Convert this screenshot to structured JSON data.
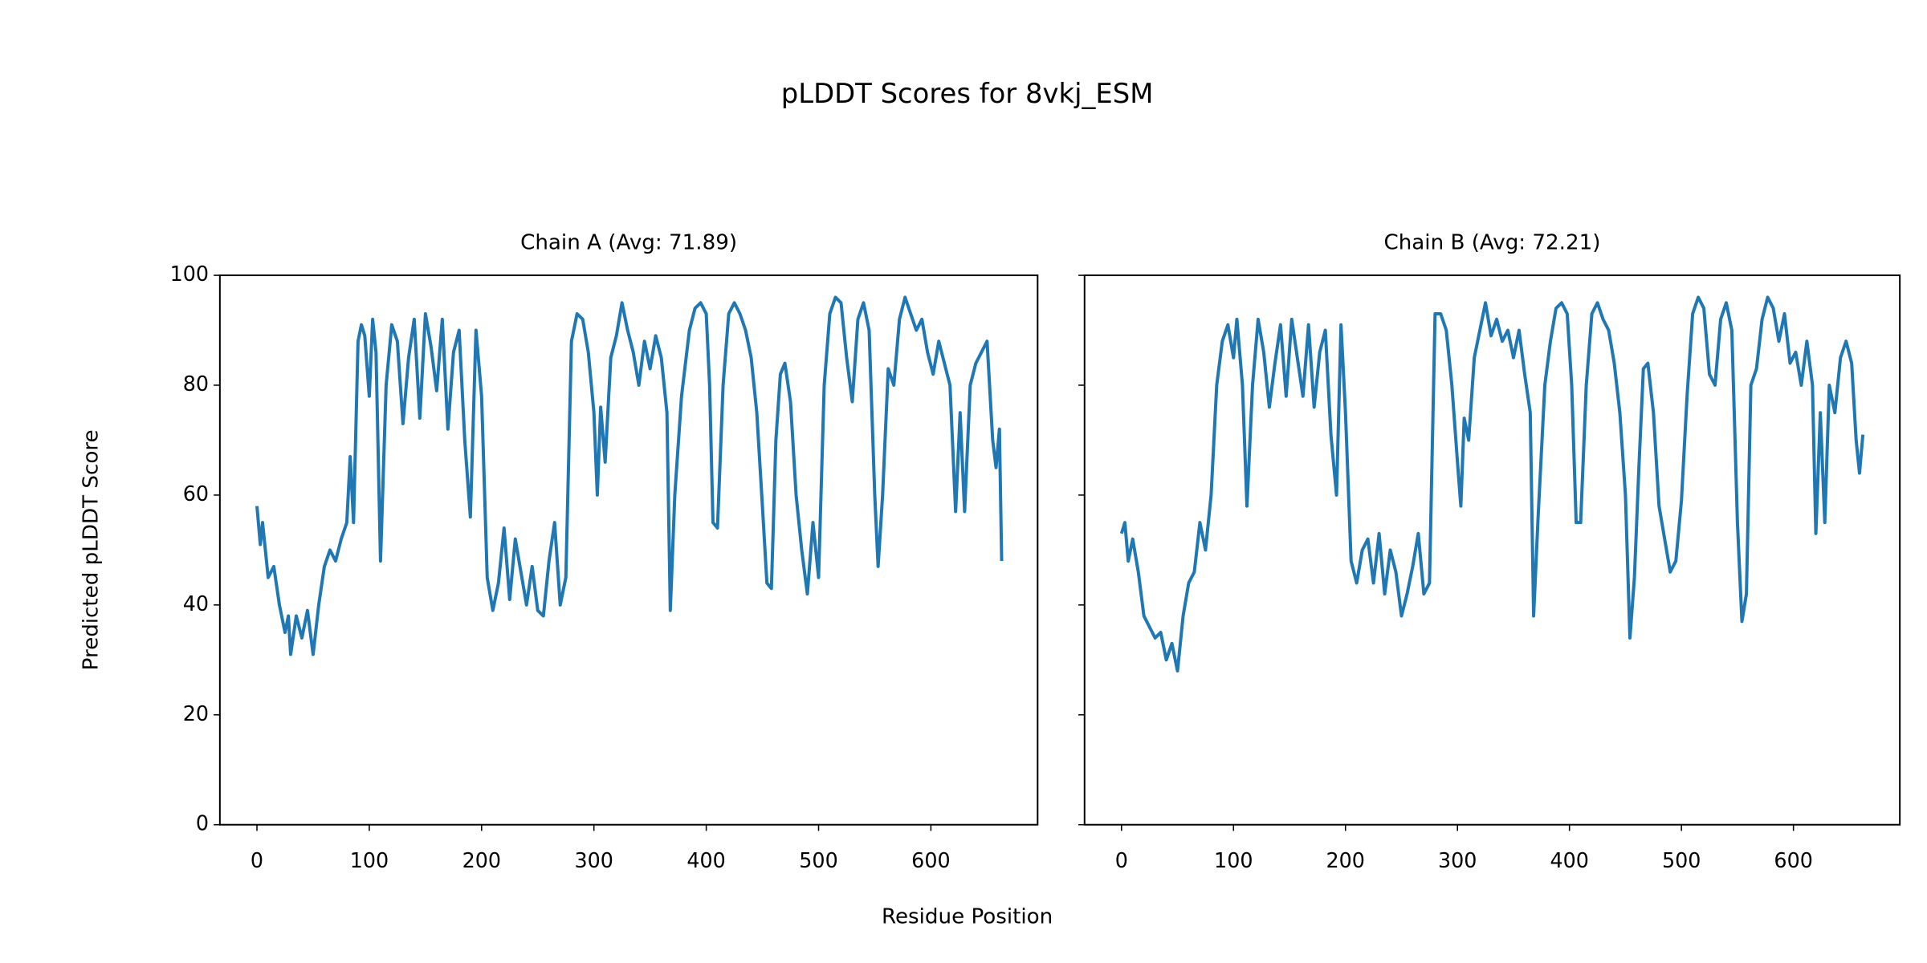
{
  "figure": {
    "title": "pLDDT Scores for 8vkj_ESM",
    "xlabel": "Residue Position"
  },
  "chart_data": [
    {
      "type": "line",
      "title": "Chain A (Avg: 71.89)",
      "ylabel": "Predicted pLDDT Score",
      "color": "#1f77b4",
      "xlim": [
        -33,
        695
      ],
      "ylim": [
        0,
        100
      ],
      "xticks": [
        0,
        100,
        200,
        300,
        400,
        500,
        600
      ],
      "yticks": [
        0,
        20,
        40,
        60,
        80,
        100
      ],
      "ytick_labels": true,
      "x": [
        0,
        3,
        5,
        10,
        15,
        20,
        25,
        28,
        30,
        35,
        40,
        45,
        50,
        55,
        60,
        65,
        70,
        75,
        80,
        83,
        86,
        90,
        93,
        96,
        100,
        103,
        106,
        110,
        115,
        120,
        125,
        130,
        135,
        140,
        145,
        150,
        155,
        160,
        165,
        170,
        175,
        180,
        185,
        190,
        195,
        200,
        205,
        210,
        215,
        220,
        225,
        230,
        235,
        240,
        245,
        250,
        255,
        260,
        265,
        270,
        275,
        280,
        285,
        290,
        295,
        300,
        303,
        306,
        310,
        315,
        320,
        325,
        330,
        335,
        340,
        345,
        350,
        355,
        360,
        365,
        368,
        372,
        378,
        385,
        390,
        395,
        400,
        403,
        406,
        410,
        415,
        420,
        425,
        430,
        435,
        440,
        445,
        450,
        454,
        458,
        462,
        466,
        470,
        475,
        480,
        485,
        490,
        495,
        500,
        505,
        510,
        515,
        520,
        525,
        530,
        535,
        540,
        545,
        550,
        553,
        557,
        562,
        567,
        572,
        577,
        582,
        587,
        592,
        597,
        602,
        607,
        612,
        617,
        622,
        626,
        630,
        635,
        640,
        645,
        650,
        655,
        658,
        661,
        663
      ],
      "values": [
        58,
        51,
        55,
        45,
        47,
        40,
        35,
        38,
        31,
        38,
        34,
        39,
        31,
        40,
        47,
        50,
        48,
        52,
        55,
        67,
        55,
        88,
        91,
        89,
        78,
        92,
        86,
        48,
        80,
        91,
        88,
        73,
        85,
        92,
        74,
        93,
        87,
        79,
        92,
        72,
        86,
        90,
        70,
        56,
        90,
        78,
        45,
        39,
        44,
        54,
        41,
        52,
        46,
        40,
        47,
        39,
        38,
        48,
        55,
        40,
        45,
        88,
        93,
        92,
        86,
        75,
        60,
        76,
        66,
        85,
        89,
        95,
        90,
        86,
        80,
        88,
        83,
        89,
        85,
        75,
        39,
        60,
        78,
        90,
        94,
        95,
        93,
        80,
        55,
        54,
        80,
        93,
        95,
        93,
        90,
        85,
        75,
        58,
        44,
        43,
        70,
        82,
        84,
        77,
        60,
        50,
        42,
        55,
        45,
        80,
        93,
        96,
        95,
        85,
        77,
        92,
        95,
        90,
        60,
        47,
        60,
        83,
        80,
        92,
        96,
        93,
        90,
        92,
        86,
        82,
        88,
        84,
        80,
        57,
        75,
        57,
        80,
        84,
        86,
        88,
        70,
        65,
        72,
        48
      ]
    },
    {
      "type": "line",
      "title": "Chain B (Avg: 72.21)",
      "color": "#1f77b4",
      "xlim": [
        -33,
        695
      ],
      "ylim": [
        0,
        100
      ],
      "xticks": [
        0,
        100,
        200,
        300,
        400,
        500,
        600
      ],
      "yticks": [
        0,
        20,
        40,
        60,
        80,
        100
      ],
      "ytick_labels": false,
      "x": [
        0,
        3,
        6,
        10,
        15,
        20,
        25,
        30,
        35,
        40,
        45,
        50,
        55,
        60,
        65,
        70,
        75,
        80,
        85,
        90,
        95,
        100,
        103,
        108,
        112,
        117,
        122,
        127,
        132,
        137,
        142,
        147,
        152,
        157,
        162,
        167,
        172,
        177,
        182,
        187,
        192,
        196,
        200,
        205,
        210,
        215,
        220,
        225,
        230,
        235,
        240,
        245,
        250,
        255,
        260,
        265,
        270,
        275,
        280,
        285,
        290,
        295,
        300,
        303,
        306,
        310,
        315,
        320,
        325,
        330,
        335,
        340,
        345,
        350,
        355,
        360,
        365,
        368,
        372,
        378,
        383,
        388,
        393,
        398,
        402,
        406,
        410,
        415,
        420,
        425,
        430,
        435,
        440,
        445,
        450,
        454,
        458,
        462,
        466,
        470,
        475,
        480,
        485,
        490,
        495,
        500,
        505,
        510,
        515,
        520,
        525,
        530,
        535,
        540,
        545,
        550,
        554,
        558,
        562,
        567,
        572,
        577,
        582,
        587,
        592,
        597,
        602,
        607,
        612,
        617,
        620,
        624,
        628,
        632,
        637,
        642,
        647,
        652,
        656,
        659,
        662
      ],
      "values": [
        53,
        55,
        48,
        52,
        46,
        38,
        36,
        34,
        35,
        30,
        33,
        28,
        38,
        44,
        46,
        55,
        50,
        60,
        80,
        88,
        91,
        85,
        92,
        80,
        58,
        80,
        92,
        86,
        76,
        84,
        91,
        78,
        92,
        85,
        78,
        91,
        76,
        86,
        90,
        71,
        60,
        91,
        75,
        48,
        44,
        50,
        52,
        44,
        53,
        42,
        50,
        46,
        38,
        42,
        47,
        53,
        42,
        44,
        93,
        93,
        90,
        80,
        66,
        58,
        74,
        70,
        85,
        90,
        95,
        89,
        92,
        88,
        90,
        85,
        90,
        82,
        75,
        38,
        56,
        80,
        88,
        94,
        95,
        93,
        80,
        55,
        55,
        80,
        93,
        95,
        92,
        90,
        84,
        75,
        60,
        34,
        45,
        65,
        83,
        84,
        75,
        58,
        52,
        46,
        48,
        59,
        78,
        93,
        96,
        94,
        82,
        80,
        92,
        95,
        90,
        55,
        37,
        42,
        80,
        83,
        92,
        96,
        94,
        88,
        93,
        84,
        86,
        80,
        88,
        80,
        53,
        75,
        55,
        80,
        75,
        85,
        88,
        84,
        70,
        64,
        71
      ]
    }
  ]
}
